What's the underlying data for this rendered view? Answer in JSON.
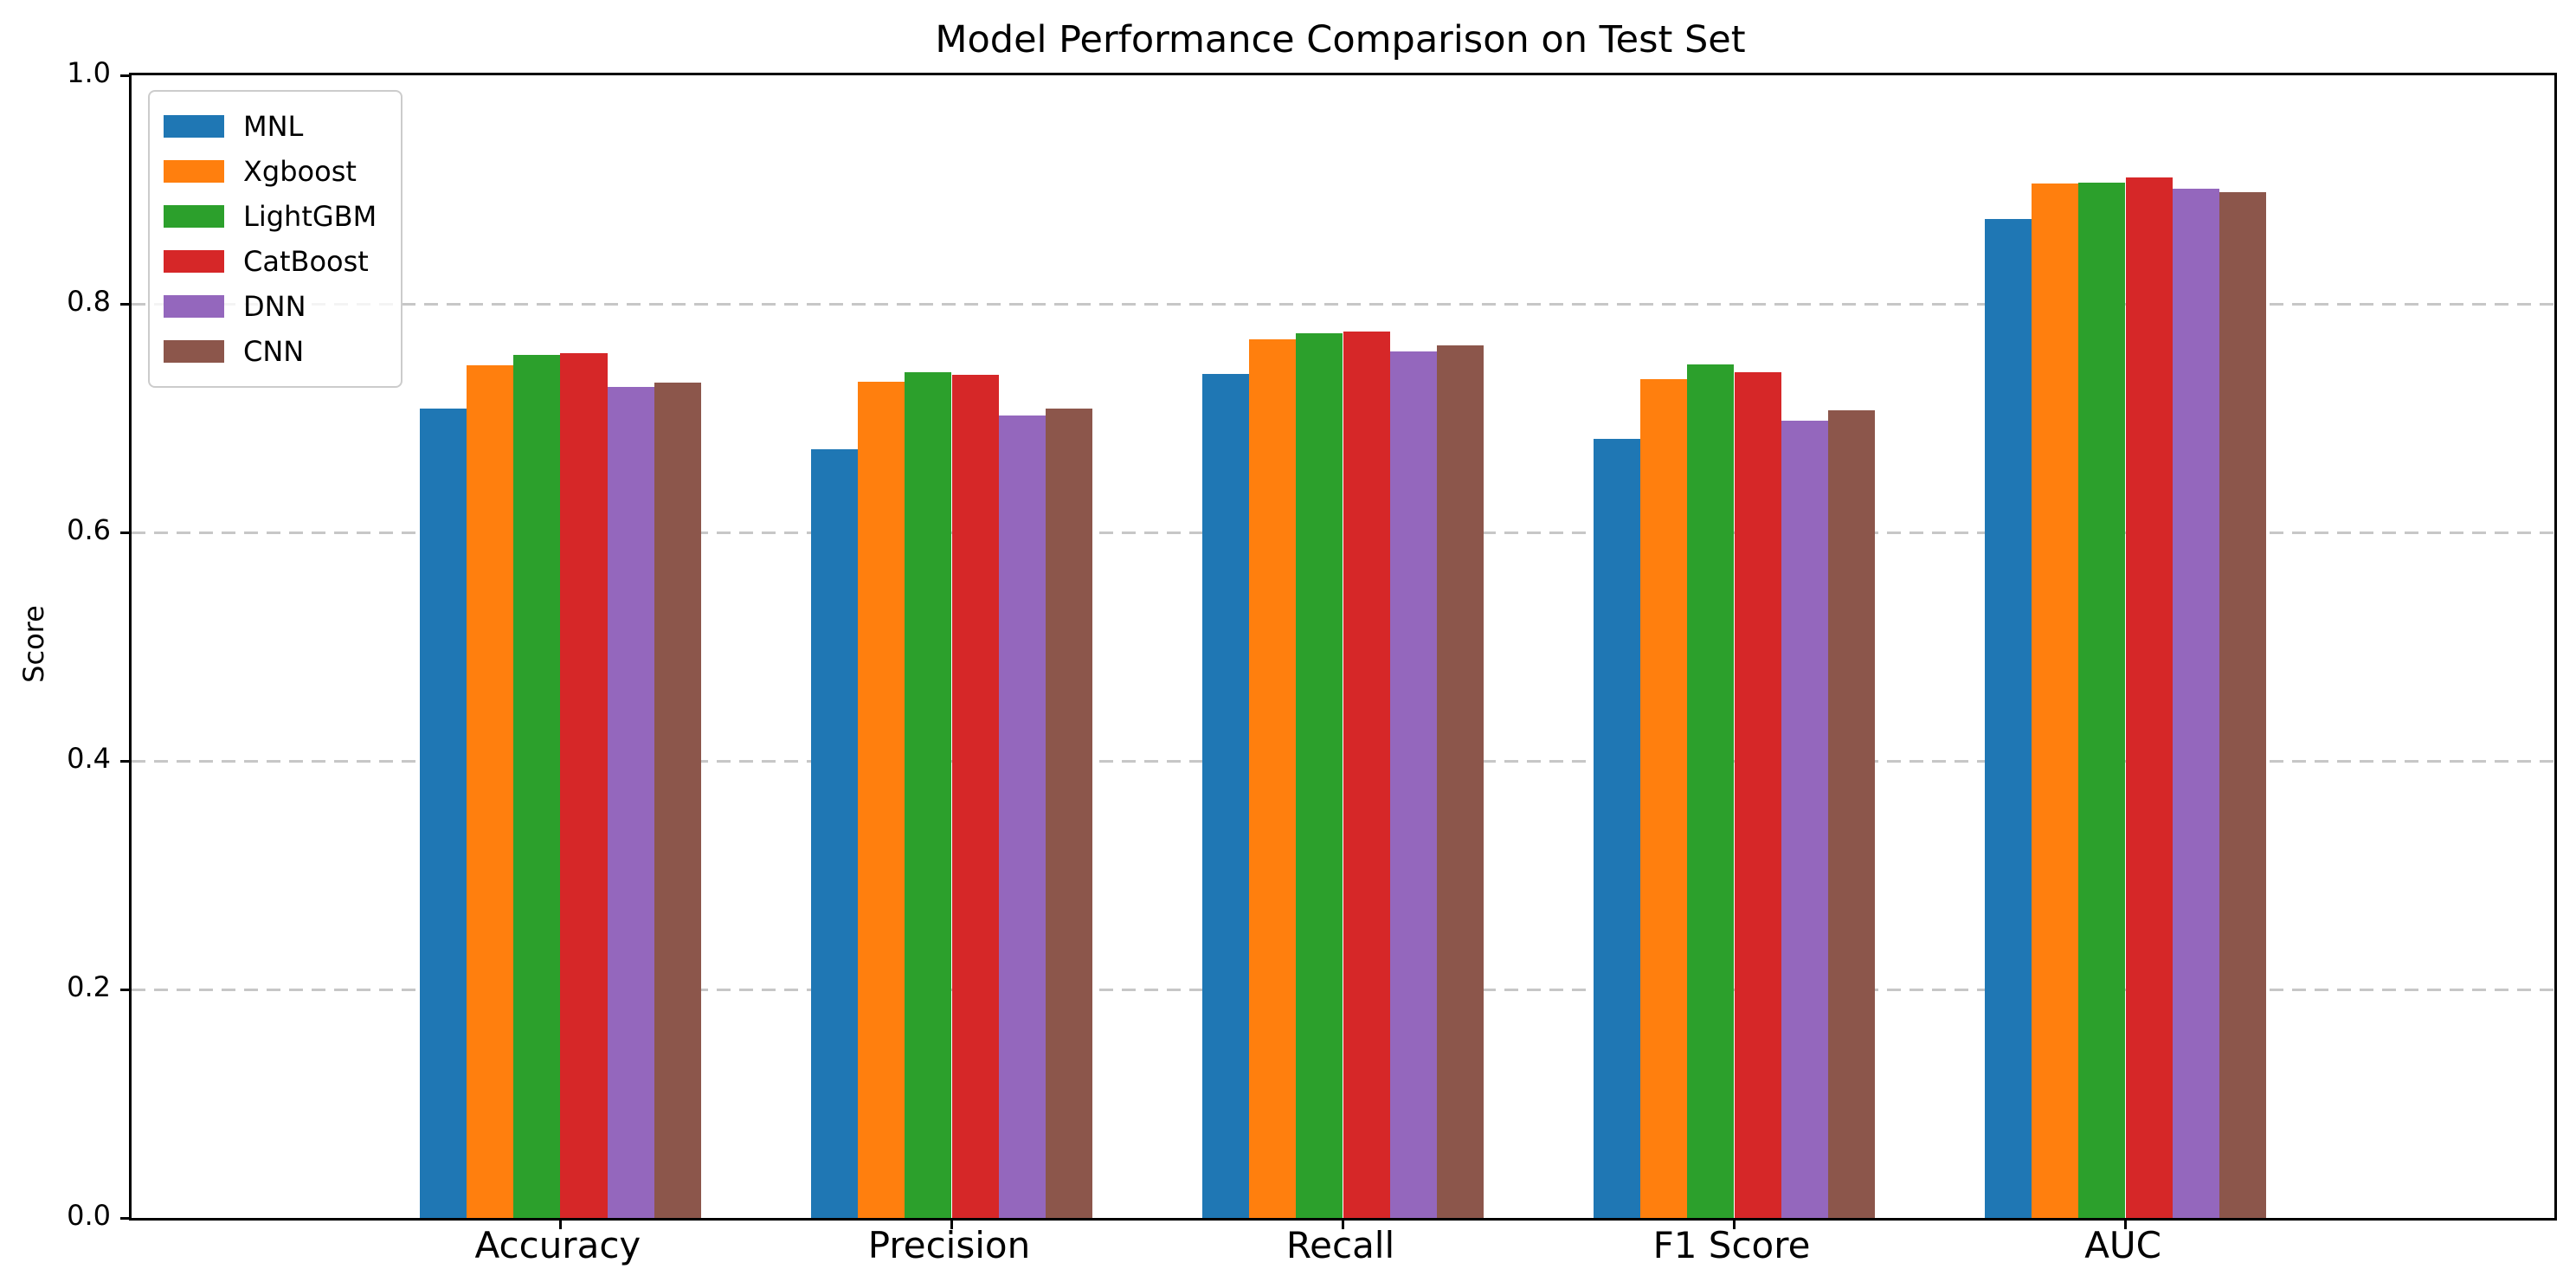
{
  "chart_data": {
    "type": "bar",
    "title": "Model Performance Comparison on Test Set",
    "ylabel": "Score",
    "xlabel": "",
    "categories": [
      "Accuracy",
      "Precision",
      "Recall",
      "F1 Score",
      "AUC"
    ],
    "series": [
      {
        "name": "MNL",
        "color": "#1f77b4",
        "values": [
          0.708,
          0.673,
          0.739,
          0.682,
          0.874
        ]
      },
      {
        "name": "Xgboost",
        "color": "#ff7f0e",
        "values": [
          0.746,
          0.732,
          0.769,
          0.734,
          0.905
        ]
      },
      {
        "name": "LightGBM",
        "color": "#2ca02c",
        "values": [
          0.755,
          0.74,
          0.774,
          0.747,
          0.906
        ]
      },
      {
        "name": "CatBoost",
        "color": "#d62728",
        "values": [
          0.757,
          0.738,
          0.776,
          0.74,
          0.911
        ]
      },
      {
        "name": "DNN",
        "color": "#9467bd",
        "values": [
          0.727,
          0.702,
          0.758,
          0.698,
          0.901
        ]
      },
      {
        "name": "CNN",
        "color": "#8c564b",
        "values": [
          0.731,
          0.708,
          0.764,
          0.707,
          0.898
        ]
      }
    ],
    "ylim": [
      0.0,
      1.0
    ],
    "yticks": [
      "0.0",
      "0.2",
      "0.4",
      "0.6",
      "0.8",
      "1.0"
    ],
    "grid": "horizontal-dashed",
    "gridline_color": "#c7c7c7",
    "legend_position": "upper left",
    "background_color": "#ffffff"
  }
}
